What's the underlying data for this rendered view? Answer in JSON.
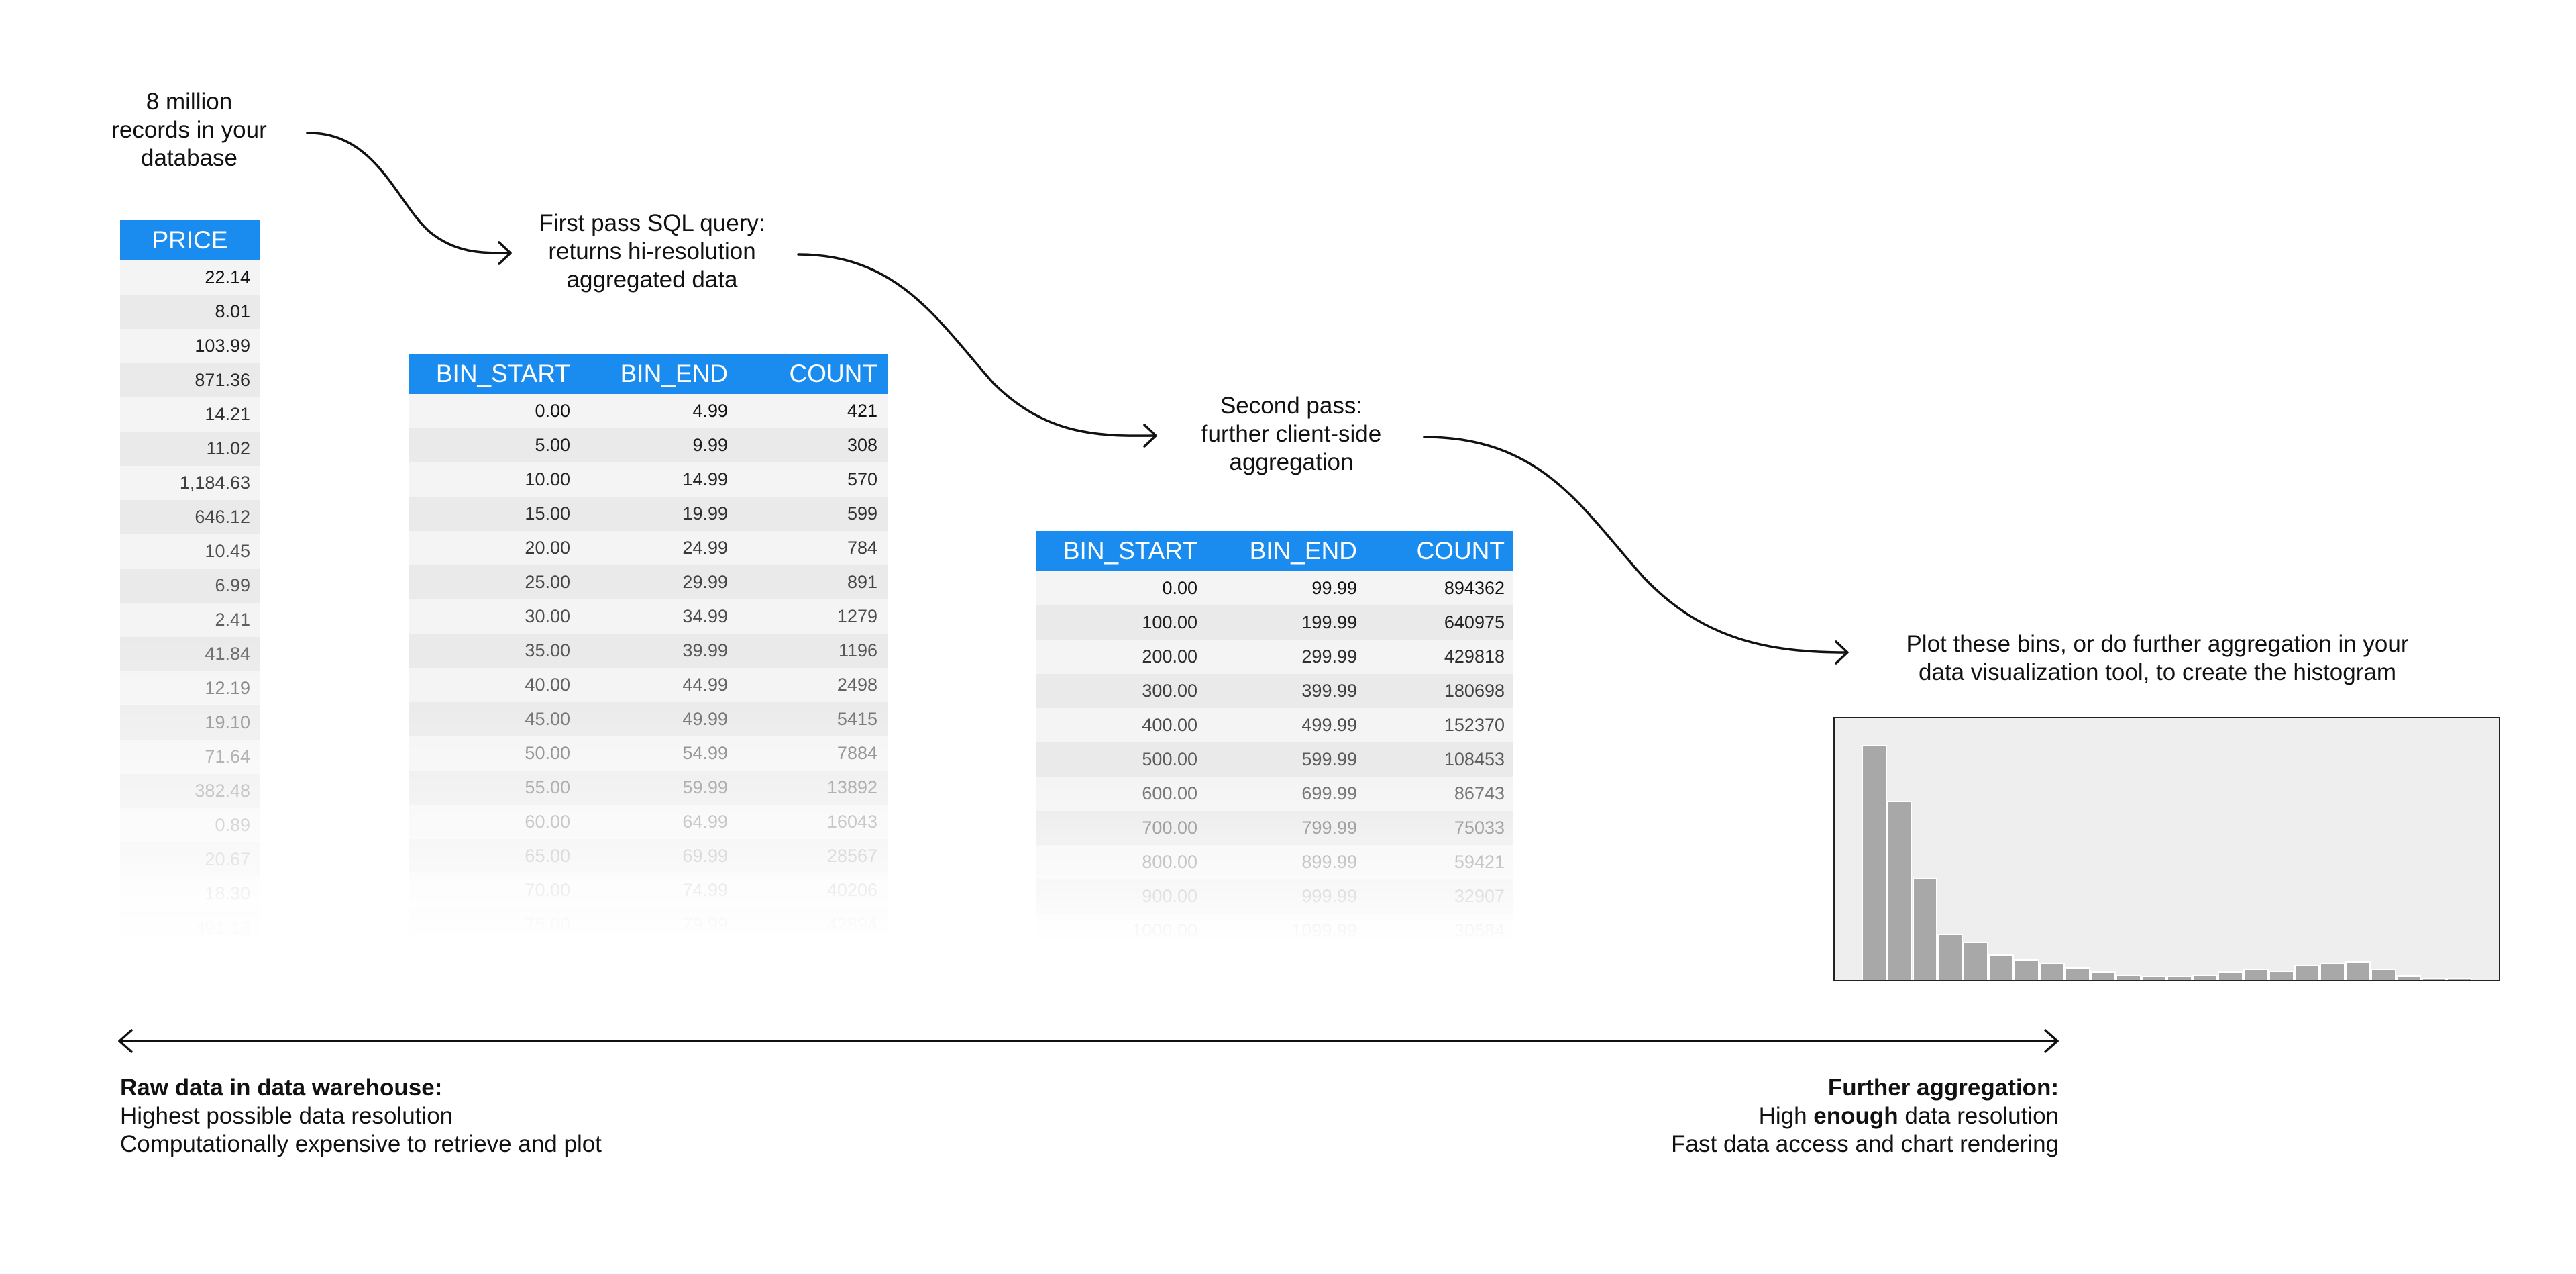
{
  "captions": {
    "source": [
      "8 million",
      "records in your",
      "database"
    ],
    "first_pass": [
      "First pass SQL query:",
      "returns hi-resolution",
      "aggregated data"
    ],
    "second_pass": [
      "Second pass:",
      "further client-side",
      "aggregation"
    ],
    "plot": [
      "Plot these bins, or do further aggregation in your",
      "data visualization tool, to create the histogram"
    ]
  },
  "raw_table": {
    "header": "PRICE",
    "rows": [
      "22.14",
      "8.01",
      "103.99",
      "871.36",
      "14.21",
      "11.02",
      "1,184.63",
      "646.12",
      "10.45",
      "6.99",
      "2.41",
      "41.84",
      "12.19",
      "19.10",
      "71.64",
      "382.48",
      "0.89",
      "20.67",
      "18.30",
      "491.13"
    ]
  },
  "first_table": {
    "headers": [
      "BIN_START",
      "BIN_END",
      "COUNT"
    ],
    "rows": [
      [
        "0.00",
        "4.99",
        "421"
      ],
      [
        "5.00",
        "9.99",
        "308"
      ],
      [
        "10.00",
        "14.99",
        "570"
      ],
      [
        "15.00",
        "19.99",
        "599"
      ],
      [
        "20.00",
        "24.99",
        "784"
      ],
      [
        "25.00",
        "29.99",
        "891"
      ],
      [
        "30.00",
        "34.99",
        "1279"
      ],
      [
        "35.00",
        "39.99",
        "1196"
      ],
      [
        "40.00",
        "44.99",
        "2498"
      ],
      [
        "45.00",
        "49.99",
        "5415"
      ],
      [
        "50.00",
        "54.99",
        "7884"
      ],
      [
        "55.00",
        "59.99",
        "13892"
      ],
      [
        "60.00",
        "64.99",
        "16043"
      ],
      [
        "65.00",
        "69.99",
        "28567"
      ],
      [
        "70.00",
        "74.99",
        "40206"
      ],
      [
        "75.00",
        "79.99",
        "42894"
      ]
    ]
  },
  "second_table": {
    "headers": [
      "BIN_START",
      "BIN_END",
      "COUNT"
    ],
    "rows": [
      [
        "0.00",
        "99.99",
        "894362"
      ],
      [
        "100.00",
        "199.99",
        "640975"
      ],
      [
        "200.00",
        "299.99",
        "429818"
      ],
      [
        "300.00",
        "399.99",
        "180698"
      ],
      [
        "400.00",
        "499.99",
        "152370"
      ],
      [
        "500.00",
        "599.99",
        "108453"
      ],
      [
        "600.00",
        "699.99",
        "86743"
      ],
      [
        "700.00",
        "799.99",
        "75033"
      ],
      [
        "800.00",
        "899.99",
        "59421"
      ],
      [
        "900.00",
        "999.99",
        "32907"
      ],
      [
        "1000.00",
        "1099.99",
        "30584"
      ]
    ]
  },
  "chart_data": {
    "type": "bar",
    "title": "",
    "xlabel": "",
    "ylabel": "",
    "grid": false,
    "values": [
      1060,
      808,
      460,
      208,
      172,
      115,
      95,
      80,
      57,
      38,
      25,
      19,
      19,
      25,
      38,
      52,
      41,
      70,
      78,
      85,
      52,
      20,
      8,
      8
    ],
    "ylim": [
      0,
      1180
    ],
    "bar_color": "#a8a8a8",
    "background": "#eeeeee"
  },
  "bottom": {
    "left": {
      "title": "Raw data in data warehouse:",
      "lines": [
        "Highest possible data resolution",
        "Computationally expensive to retrieve and plot"
      ]
    },
    "right": {
      "title": "Further aggregation:",
      "line1_pre": "High ",
      "line1_bold": "enough",
      "line1_post": " data resolution",
      "line2": "Fast data access and chart rendering"
    }
  },
  "colors": {
    "header_blue": "#1a8cf0",
    "text": "#111111"
  }
}
